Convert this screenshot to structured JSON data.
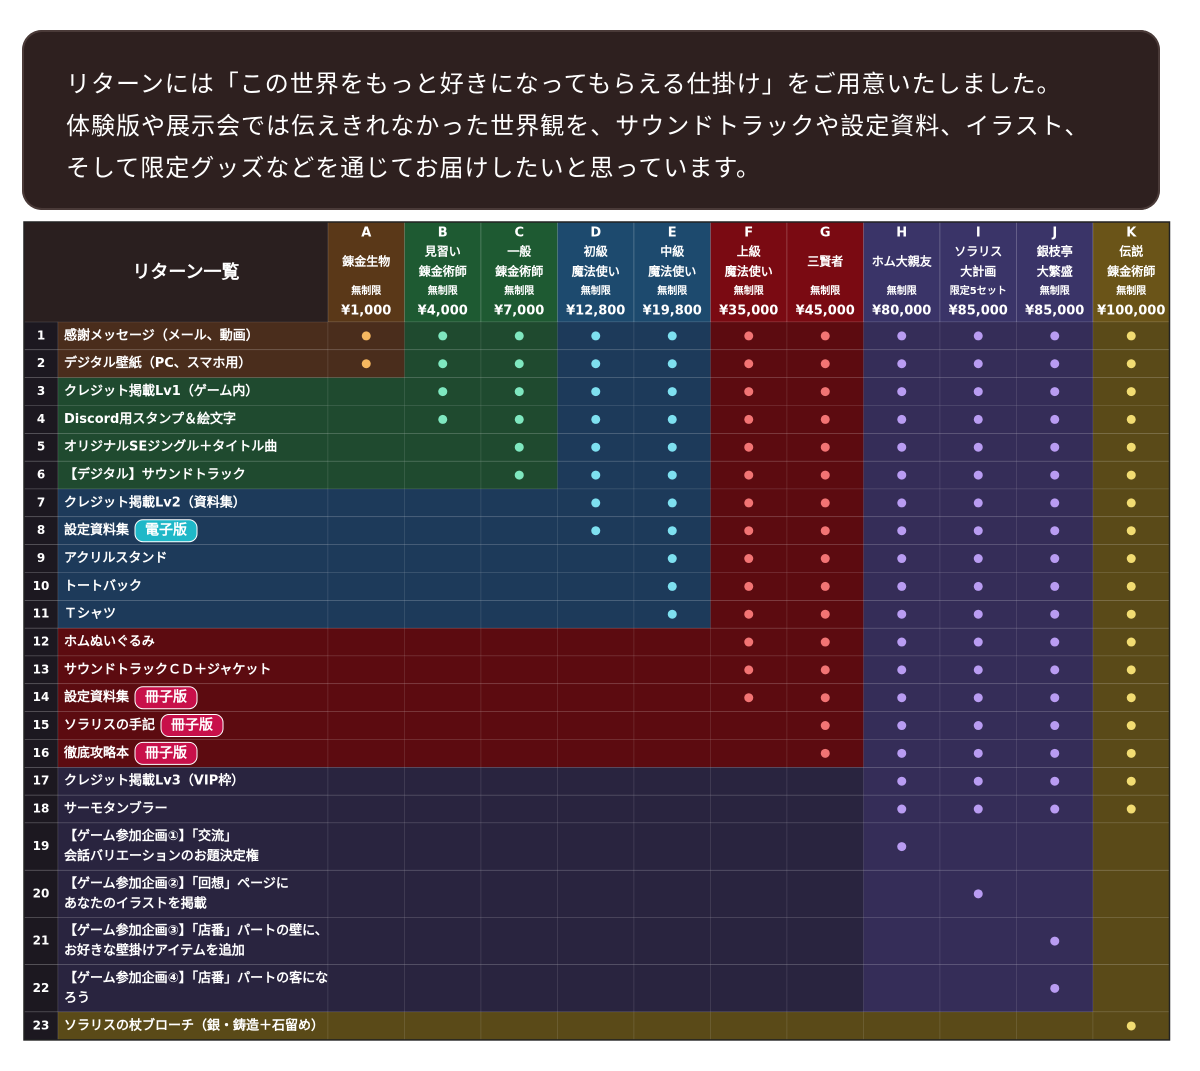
{
  "intro": {
    "lines": [
      "リターンには「この世界をもっと好きになってもらえる仕掛け」をご用意いたしました。",
      "体験版や展示会では伝えきれなかった世界観を、サウンドトラックや設定資料、イラスト、",
      "そして限定グッズなどを通じてお届けしたいと思っています。"
    ]
  },
  "table": {
    "title": "リターン一覧",
    "tiers": [
      {
        "letter": "A",
        "name": [
          "錬金生物"
        ],
        "limit": "無制限",
        "price": "¥1,000"
      },
      {
        "letter": "B",
        "name": [
          "見習い",
          "錬金術師"
        ],
        "limit": "無制限",
        "price": "¥4,000"
      },
      {
        "letter": "C",
        "name": [
          "一般",
          "錬金術師"
        ],
        "limit": "無制限",
        "price": "¥7,000"
      },
      {
        "letter": "D",
        "name": [
          "初級",
          "魔法使い"
        ],
        "limit": "無制限",
        "price": "¥12,800"
      },
      {
        "letter": "E",
        "name": [
          "中級",
          "魔法使い"
        ],
        "limit": "無制限",
        "price": "¥19,800"
      },
      {
        "letter": "F",
        "name": [
          "上級",
          "魔法使い"
        ],
        "limit": "無制限",
        "price": "¥35,000"
      },
      {
        "letter": "G",
        "name": [
          "三賢者"
        ],
        "limit": "無制限",
        "price": "¥45,000"
      },
      {
        "letter": "H",
        "name": [
          "ホム大親友"
        ],
        "limit": "無制限",
        "price": "¥80,000"
      },
      {
        "letter": "I",
        "name": [
          "ソラリス",
          "大計画"
        ],
        "limit": "限定5セット",
        "price": "¥85,000"
      },
      {
        "letter": "J",
        "name": [
          "銀枝亭",
          "大繁盛"
        ],
        "limit": "無制限",
        "price": "¥85,000"
      },
      {
        "letter": "K",
        "name": [
          "伝説",
          "錬金術師"
        ],
        "limit": "無制限",
        "price": "¥100,000"
      }
    ],
    "rows": [
      {
        "no": 1,
        "item": [
          "感謝メッセージ（メール、動画）"
        ],
        "included": [
          true,
          true,
          true,
          true,
          true,
          true,
          true,
          true,
          true,
          true,
          true
        ]
      },
      {
        "no": 2,
        "item": [
          "デジタル壁紙（PC、スマホ用）"
        ],
        "included": [
          true,
          true,
          true,
          true,
          true,
          true,
          true,
          true,
          true,
          true,
          true
        ]
      },
      {
        "no": 3,
        "item": [
          "クレジット掲載Lv1（ゲーム内）"
        ],
        "included": [
          false,
          true,
          true,
          true,
          true,
          true,
          true,
          true,
          true,
          true,
          true
        ]
      },
      {
        "no": 4,
        "item": [
          "Discord用スタンプ＆絵文字"
        ],
        "included": [
          false,
          true,
          true,
          true,
          true,
          true,
          true,
          true,
          true,
          true,
          true
        ]
      },
      {
        "no": 5,
        "item": [
          "オリジナルSEジングル＋タイトル曲"
        ],
        "included": [
          false,
          false,
          true,
          true,
          true,
          true,
          true,
          true,
          true,
          true,
          true
        ]
      },
      {
        "no": 6,
        "item": [
          "【デジタル】サウンドトラック"
        ],
        "included": [
          false,
          false,
          true,
          true,
          true,
          true,
          true,
          true,
          true,
          true,
          true
        ]
      },
      {
        "no": 7,
        "item": [
          "クレジット掲載Lv2（資料集）"
        ],
        "included": [
          false,
          false,
          false,
          true,
          true,
          true,
          true,
          true,
          true,
          true,
          true
        ]
      },
      {
        "no": 8,
        "item": [
          "設定資料集"
        ],
        "badge": "電子版",
        "included": [
          false,
          false,
          false,
          true,
          true,
          true,
          true,
          true,
          true,
          true,
          true
        ]
      },
      {
        "no": 9,
        "item": [
          "アクリルスタンド"
        ],
        "included": [
          false,
          false,
          false,
          false,
          true,
          true,
          true,
          true,
          true,
          true,
          true
        ]
      },
      {
        "no": 10,
        "item": [
          "トートバック"
        ],
        "included": [
          false,
          false,
          false,
          false,
          true,
          true,
          true,
          true,
          true,
          true,
          true
        ]
      },
      {
        "no": 11,
        "item": [
          "Ｔシャツ"
        ],
        "included": [
          false,
          false,
          false,
          false,
          true,
          true,
          true,
          true,
          true,
          true,
          true
        ]
      },
      {
        "no": 12,
        "item": [
          "ホムぬいぐるみ"
        ],
        "included": [
          false,
          false,
          false,
          false,
          false,
          true,
          true,
          true,
          true,
          true,
          true
        ]
      },
      {
        "no": 13,
        "item": [
          "サウンドトラックＣＤ＋ジャケット"
        ],
        "included": [
          false,
          false,
          false,
          false,
          false,
          true,
          true,
          true,
          true,
          true,
          true
        ]
      },
      {
        "no": 14,
        "item": [
          "設定資料集"
        ],
        "badge": "冊子版",
        "included": [
          false,
          false,
          false,
          false,
          false,
          true,
          true,
          true,
          true,
          true,
          true
        ]
      },
      {
        "no": 15,
        "item": [
          "ソラリスの手記"
        ],
        "badge": "冊子版",
        "included": [
          false,
          false,
          false,
          false,
          false,
          false,
          true,
          true,
          true,
          true,
          true
        ]
      },
      {
        "no": 16,
        "item": [
          "徹底攻略本"
        ],
        "badge": "冊子版",
        "included": [
          false,
          false,
          false,
          false,
          false,
          false,
          true,
          true,
          true,
          true,
          true
        ]
      },
      {
        "no": 17,
        "item": [
          "クレジット掲載Lv3（VIP枠）"
        ],
        "included": [
          false,
          false,
          false,
          false,
          false,
          false,
          false,
          true,
          true,
          true,
          true
        ]
      },
      {
        "no": 18,
        "item": [
          "サーモタンブラー"
        ],
        "included": [
          false,
          false,
          false,
          false,
          false,
          false,
          false,
          true,
          true,
          true,
          true
        ]
      },
      {
        "no": 19,
        "item": [
          "【ゲーム参加企画①】「交流」",
          "会話バリエーションのお題決定権"
        ],
        "included": [
          false,
          false,
          false,
          false,
          false,
          false,
          false,
          true,
          false,
          false,
          false
        ]
      },
      {
        "no": 20,
        "item": [
          "【ゲーム参加企画②】「回想」ページに",
          "あなたのイラストを掲載"
        ],
        "included": [
          false,
          false,
          false,
          false,
          false,
          false,
          false,
          false,
          true,
          false,
          false
        ]
      },
      {
        "no": 21,
        "item": [
          "【ゲーム参加企画③】「店番」パートの壁に、",
          "お好きな壁掛けアイテムを追加"
        ],
        "included": [
          false,
          false,
          false,
          false,
          false,
          false,
          false,
          false,
          false,
          true,
          false
        ]
      },
      {
        "no": 22,
        "item": [
          "【ゲーム参加企画④】「店番」パートの客にな",
          "ろう"
        ],
        "included": [
          false,
          false,
          false,
          false,
          false,
          false,
          false,
          false,
          false,
          true,
          false
        ]
      },
      {
        "no": 23,
        "item": [
          "ソラリスの杖ブローチ（銀・鋳造＋石留め）"
        ],
        "included": [
          false,
          false,
          false,
          false,
          false,
          false,
          false,
          false,
          false,
          false,
          true
        ]
      }
    ]
  }
}
